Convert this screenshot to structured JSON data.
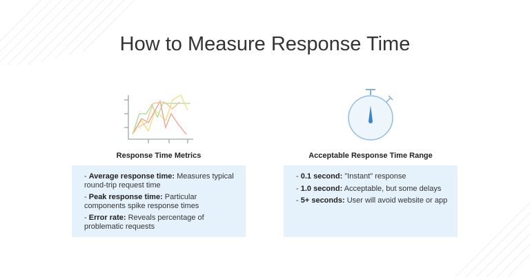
{
  "title": "How to Measure Response Time",
  "sections": [
    {
      "heading": "Response Time Metrics",
      "items": [
        {
          "marker": "-",
          "term": "Average response time:",
          "text": "Measures typical round-trip request time"
        },
        {
          "marker": "-",
          "term": "Peak response time:",
          "text": "Particular components spike response times"
        },
        {
          "marker": "-",
          "term": "Error rate:",
          "text": "Reveals percentage of problematic requests"
        }
      ]
    },
    {
      "heading": "Acceptable Response Time Range",
      "items": [
        {
          "marker": "-",
          "term": "0.1 second:",
          "text": "\"Instant\" response"
        },
        {
          "marker": "-",
          "term": "1.0 second:",
          "text": "Acceptable, but some delays"
        },
        {
          "marker": "-",
          "term": "5+ seconds:",
          "text": "User will avoid website or app"
        }
      ]
    }
  ]
}
